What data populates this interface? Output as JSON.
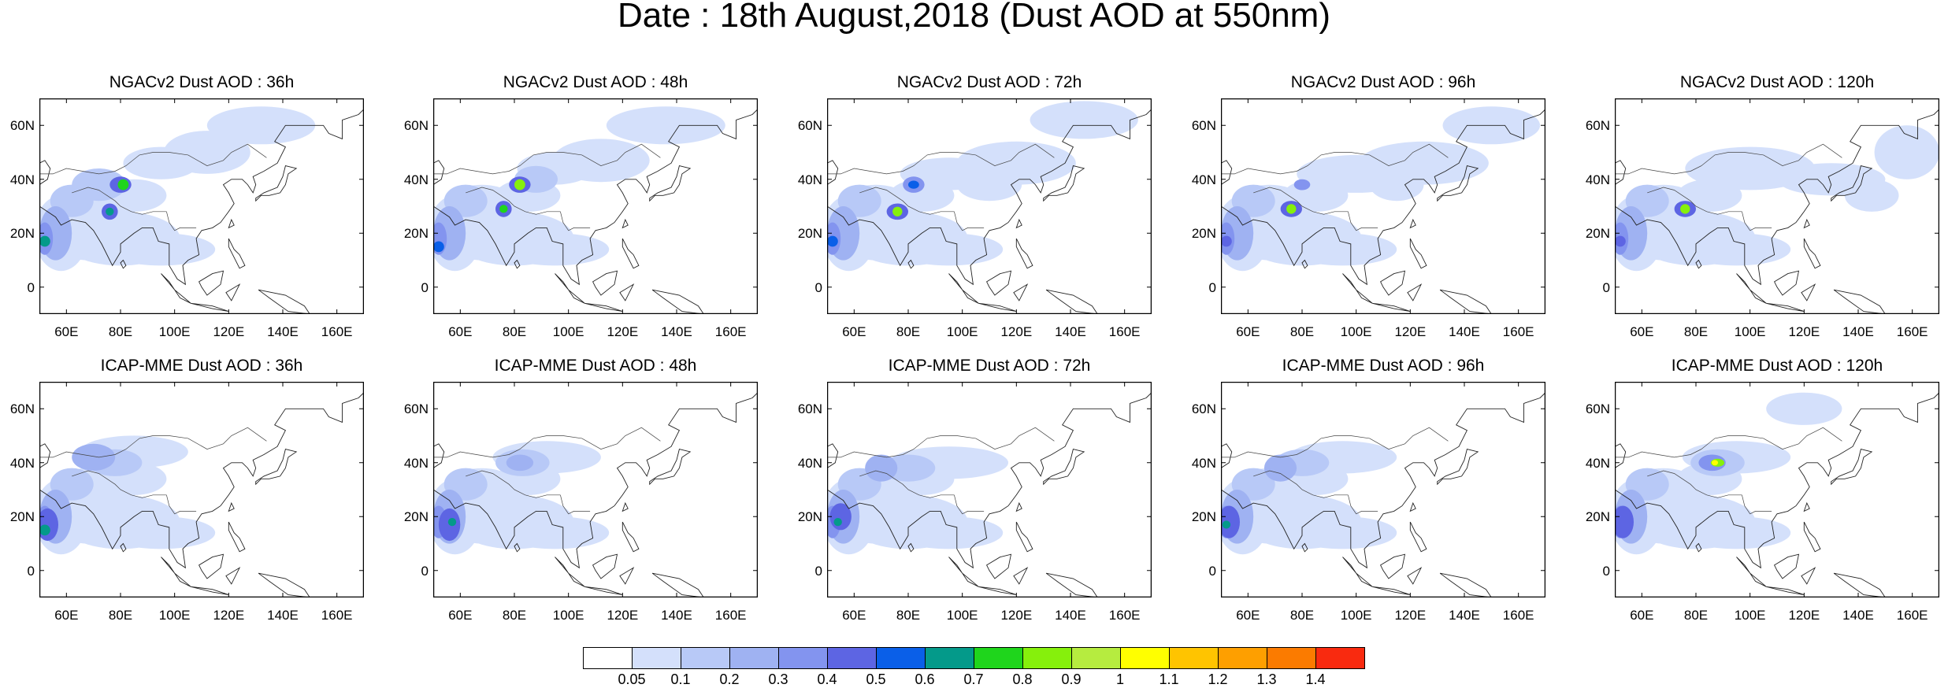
{
  "title": "Date : 18th August,2018 (Dust AOD at 550nm)",
  "rows": [
    {
      "panels": [
        {
          "title": "NGACv2 Dust AOD : 36h"
        },
        {
          "title": "NGACv2 Dust AOD : 48h"
        },
        {
          "title": "NGACv2 Dust AOD : 72h"
        },
        {
          "title": "NGACv2 Dust AOD : 96h"
        },
        {
          "title": "NGACv2 Dust AOD : 120h"
        }
      ]
    },
    {
      "panels": [
        {
          "title": "ICAP-MME Dust AOD : 36h"
        },
        {
          "title": "ICAP-MME Dust AOD : 48h"
        },
        {
          "title": "ICAP-MME Dust AOD : 72h"
        },
        {
          "title": "ICAP-MME Dust AOD : 96h"
        },
        {
          "title": "ICAP-MME Dust AOD : 120h"
        }
      ]
    }
  ],
  "axes": {
    "lat_ticks": [
      "60N",
      "40N",
      "20N",
      "0"
    ],
    "lon_ticks": [
      "60E",
      "80E",
      "100E",
      "120E",
      "140E",
      "160E"
    ],
    "lat_range": [
      -10,
      70
    ],
    "lon_range": [
      50,
      170
    ]
  },
  "colorbar": {
    "labels": [
      "0.05",
      "0.1",
      "0.2",
      "0.3",
      "0.4",
      "0.5",
      "0.6",
      "0.7",
      "0.8",
      "0.9",
      "1",
      "1.1",
      "1.2",
      "1.3",
      "1.4"
    ],
    "colors": [
      "#ffffff",
      "#d4e0fb",
      "#b8c9f7",
      "#9fb2f2",
      "#8394ef",
      "#5d65e3",
      "#0a5fe8",
      "#049a8a",
      "#1fd51c",
      "#86f00c",
      "#b6ec3f",
      "#ffff00",
      "#ffc400",
      "#fe9f00",
      "#fb7b00",
      "#f92a0f"
    ]
  }
}
